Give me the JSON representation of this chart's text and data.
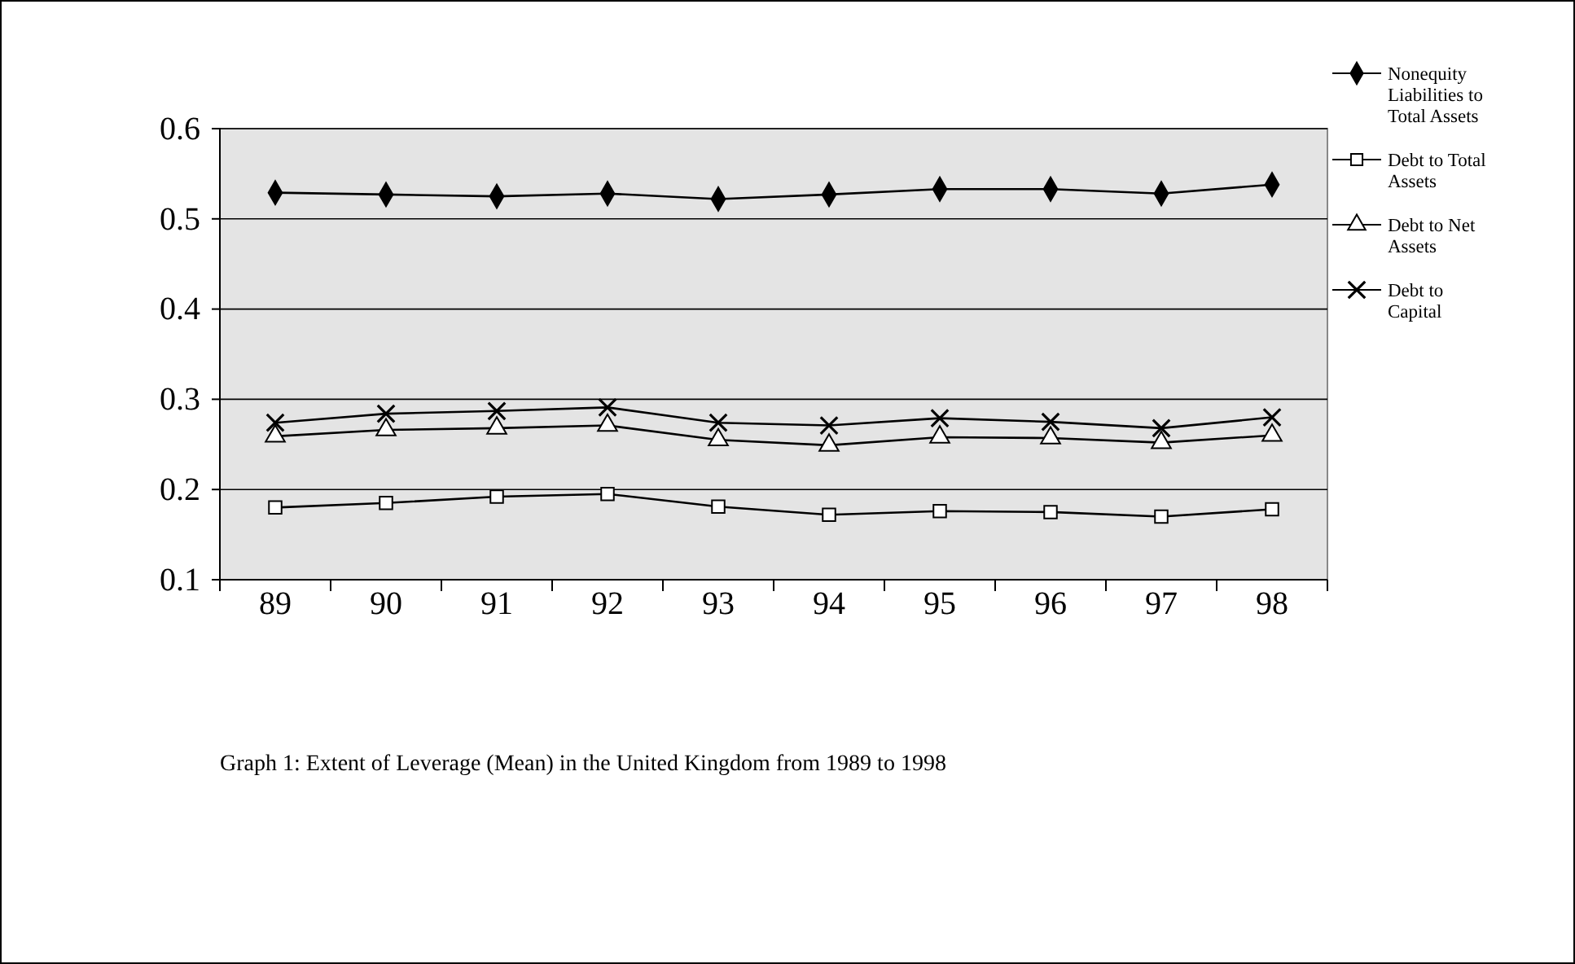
{
  "chart_data": {
    "type": "line",
    "title": "Graph 1: Extent of Leverage  (Mean) in the United Kingdom  from 1989 to 1998",
    "categories": [
      "89",
      "90",
      "91",
      "92",
      "93",
      "94",
      "95",
      "96",
      "97",
      "98"
    ],
    "series": [
      {
        "name": "Nonequity Liabilities to Total Assets",
        "color": "#000000",
        "marker": "diamond",
        "values": [
          0.529,
          0.527,
          0.525,
          0.528,
          0.522,
          0.527,
          0.533,
          0.533,
          0.528,
          0.538
        ]
      },
      {
        "name": "Debt to Total Assets",
        "color": "#000000",
        "marker": "square",
        "values": [
          0.18,
          0.185,
          0.192,
          0.195,
          0.181,
          0.172,
          0.176,
          0.175,
          0.17,
          0.178
        ]
      },
      {
        "name": "Debt to Net Assets",
        "color": "#000000",
        "marker": "triangle",
        "values": [
          0.259,
          0.266,
          0.268,
          0.271,
          0.255,
          0.249,
          0.258,
          0.257,
          0.252,
          0.26
        ]
      },
      {
        "name": "Debt to Capital",
        "color": "#000000",
        "marker": "cross",
        "values": [
          0.274,
          0.284,
          0.287,
          0.291,
          0.274,
          0.271,
          0.279,
          0.275,
          0.268,
          0.28
        ]
      }
    ],
    "ylim": [
      0.1,
      0.6
    ],
    "yticks": [
      0.1,
      0.2,
      0.3,
      0.4,
      0.5,
      0.6
    ],
    "grid": "y",
    "legend": "top right"
  }
}
